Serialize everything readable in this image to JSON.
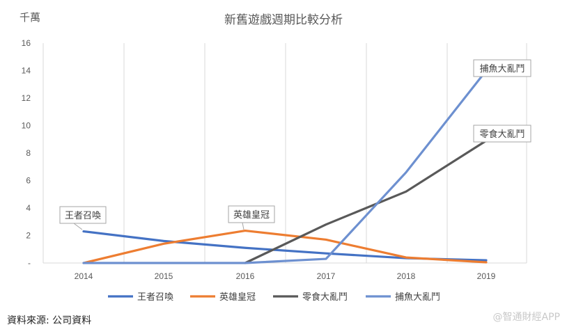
{
  "chart_data": {
    "type": "line",
    "title": "新舊遊戲週期比較分析",
    "unit_label": "千萬",
    "x": [
      "2014",
      "2015",
      "2016",
      "2017",
      "2018",
      "2019"
    ],
    "ylim": [
      0,
      16
    ],
    "yticks": [
      "-",
      "2",
      "4",
      "6",
      "8",
      "10",
      "12",
      "14",
      "16"
    ],
    "grid": "vertical",
    "legend_position": "bottom",
    "series": [
      {
        "name": "王者召喚",
        "color": "#4472C4",
        "values": [
          2.3,
          1.6,
          1.1,
          0.7,
          0.35,
          0.2
        ],
        "callout": "王者召喚",
        "callout_index": 0
      },
      {
        "name": "英雄皇冠",
        "color": "#ED7D31",
        "values": [
          0,
          1.4,
          2.35,
          1.7,
          0.4,
          0.05
        ],
        "callout": "英雄皇冠",
        "callout_index": 2
      },
      {
        "name": "零食大亂鬥",
        "color": "#595959",
        "values": [
          null,
          null,
          0,
          2.8,
          5.2,
          8.9
        ],
        "callout": "零食大亂鬥",
        "callout_index": 5
      },
      {
        "name": "捕魚大亂鬥",
        "color": "#6D90D0",
        "values": [
          0,
          0,
          0,
          0.3,
          6.6,
          14
        ],
        "callout": "捕魚大亂鬥",
        "callout_index": 5
      }
    ]
  },
  "footer": {
    "source": "資料來源: 公司資料",
    "watermark": "@智通財經APP"
  }
}
